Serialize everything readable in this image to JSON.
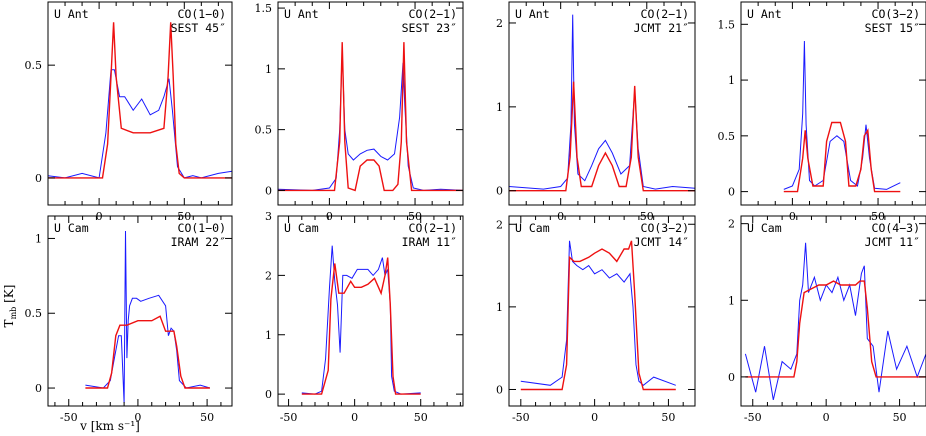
{
  "colors": {
    "observed": "#1a1aff",
    "model": "#ee1111"
  },
  "axis_labels": {
    "xlabel": "v [km s⁻¹]",
    "ylabel": "T",
    "ylabel_sub": "mb",
    "ylabel_unit": "[K]"
  },
  "chart_data": [
    {
      "type": "line",
      "star": "U Ant",
      "line": "CO(1−0)",
      "beam": "SEST 45″",
      "xlim": [
        -30,
        78
      ],
      "ylim": [
        -0.12,
        0.78
      ],
      "xticks": [
        0,
        50
      ],
      "yticks": [
        0,
        0.5
      ],
      "ytick_labels": [
        "0",
        "0.5"
      ],
      "series": [
        {
          "role": "observed",
          "x": [
            -30,
            -20,
            -10,
            0,
            4,
            7,
            9,
            12,
            15,
            20,
            25,
            30,
            35,
            38,
            41,
            43,
            46,
            50,
            55,
            60,
            70,
            78
          ],
          "y": [
            0.01,
            0.0,
            0.02,
            0.0,
            0.2,
            0.48,
            0.48,
            0.36,
            0.36,
            0.3,
            0.35,
            0.28,
            0.3,
            0.36,
            0.44,
            0.3,
            0.05,
            0.0,
            0.01,
            0.0,
            0.02,
            0.03
          ]
        },
        {
          "role": "model",
          "x": [
            -30,
            2,
            5,
            7,
            8.5,
            10,
            13,
            20,
            30,
            38,
            40.5,
            42,
            43.5,
            45,
            47,
            50,
            78
          ],
          "y": [
            0,
            0,
            0.15,
            0.45,
            0.69,
            0.45,
            0.22,
            0.2,
            0.2,
            0.22,
            0.45,
            0.69,
            0.45,
            0.15,
            0.02,
            0,
            0
          ]
        }
      ]
    },
    {
      "type": "line",
      "star": "U Ant",
      "line": "CO(2−1)",
      "beam": "SEST 23″",
      "xlim": [
        -30,
        78
      ],
      "ylim": [
        -0.12,
        1.55
      ],
      "xticks": [
        0,
        50
      ],
      "yticks": [
        0,
        0.5,
        1,
        1.5
      ],
      "ytick_labels": [
        "0",
        "0.5",
        "1",
        "1.5"
      ],
      "series": [
        {
          "role": "observed",
          "x": [
            -30,
            -10,
            0,
            4,
            6,
            7.5,
            9,
            11,
            14,
            18,
            22,
            26,
            30,
            34,
            38,
            41,
            43,
            44,
            46,
            49,
            55,
            65,
            78
          ],
          "y": [
            0.01,
            0.0,
            0.02,
            0.1,
            0.5,
            1.15,
            0.5,
            0.3,
            0.25,
            0.3,
            0.33,
            0.34,
            0.28,
            0.25,
            0.3,
            0.6,
            1.05,
            0.7,
            0.2,
            0.02,
            0.0,
            0.01,
            0.0
          ]
        },
        {
          "role": "model",
          "x": [
            -30,
            3,
            6,
            7.5,
            9,
            11,
            15,
            18,
            22,
            26,
            29,
            32,
            37,
            40,
            42,
            43.5,
            45,
            48,
            78
          ],
          "y": [
            0,
            0,
            0.4,
            1.22,
            0.4,
            0.02,
            0.0,
            0.2,
            0.25,
            0.25,
            0.2,
            0.0,
            0.0,
            0.05,
            0.4,
            1.22,
            0.4,
            0,
            0
          ]
        }
      ]
    },
    {
      "type": "line",
      "star": "U Ant",
      "line": "CO(2−1)",
      "beam": "JCMT 21″",
      "xlim": [
        -30,
        78
      ],
      "ylim": [
        -0.17,
        2.25
      ],
      "xticks": [
        0,
        50
      ],
      "yticks": [
        0,
        1,
        2
      ],
      "ytick_labels": [
        "0",
        "1",
        "2"
      ],
      "series": [
        {
          "role": "observed",
          "x": [
            -30,
            -10,
            0,
            4,
            6,
            7,
            8,
            10,
            14,
            18,
            22,
            26,
            30,
            35,
            40,
            42,
            43,
            45,
            48,
            55,
            65,
            78
          ],
          "y": [
            0.05,
            0.02,
            0.05,
            0.15,
            0.8,
            2.1,
            0.8,
            0.2,
            0.12,
            0.3,
            0.5,
            0.6,
            0.45,
            0.2,
            0.3,
            0.9,
            1.2,
            0.5,
            0.05,
            0.02,
            0.05,
            0.03
          ]
        },
        {
          "role": "model",
          "x": [
            -30,
            3,
            5.5,
            7.5,
            9.5,
            12,
            18,
            22,
            26,
            30,
            34,
            38,
            41,
            43,
            45,
            48,
            78
          ],
          "y": [
            0,
            0,
            0.4,
            1.3,
            0.4,
            0.05,
            0.05,
            0.3,
            0.45,
            0.3,
            0.05,
            0.05,
            0.4,
            1.25,
            0.4,
            0,
            0
          ]
        }
      ]
    },
    {
      "type": "line",
      "star": "U Ant",
      "line": "CO(3−2)",
      "beam": "SEST 15″",
      "xlim": [
        -30,
        78
      ],
      "ylim": [
        -0.12,
        1.7
      ],
      "xticks": [
        0,
        50
      ],
      "yticks": [
        0,
        0.5,
        1,
        1.5
      ],
      "ytick_labels": [
        "0",
        "0.5",
        "1",
        "1.5"
      ],
      "series": [
        {
          "role": "observed",
          "x": [
            -5,
            0,
            4,
            6,
            7,
            8,
            10,
            13,
            18,
            22,
            26,
            30,
            34,
            38,
            41,
            43,
            45,
            48,
            55,
            63
          ],
          "y": [
            0.02,
            0.05,
            0.2,
            0.7,
            1.35,
            0.6,
            0.1,
            0.05,
            0.1,
            0.45,
            0.5,
            0.45,
            0.1,
            0.05,
            0.3,
            0.6,
            0.3,
            0.03,
            0.02,
            0.08
          ]
        },
        {
          "role": "model",
          "x": [
            -5,
            3,
            6,
            7.5,
            9,
            12,
            18,
            20,
            23,
            28,
            31,
            33,
            37,
            40,
            42,
            44,
            46,
            48,
            63
          ],
          "y": [
            0,
            0,
            0.3,
            0.55,
            0.3,
            0.05,
            0.05,
            0.45,
            0.62,
            0.62,
            0.45,
            0.05,
            0.05,
            0.2,
            0.5,
            0.55,
            0.2,
            0,
            0
          ]
        }
      ]
    },
    {
      "type": "line",
      "star": "U Cam",
      "line": "CO(1−0)",
      "beam": "IRAM 22″",
      "xlim": [
        -65,
        68
      ],
      "ylim": [
        -0.12,
        1.15
      ],
      "xticks": [
        -50,
        0,
        50
      ],
      "yticks": [
        0,
        0.5,
        1
      ],
      "ytick_labels": [
        "0",
        "0.5",
        "1"
      ],
      "series": [
        {
          "role": "observed",
          "x": [
            -38,
            -25,
            -20,
            -17,
            -14,
            -12,
            -10,
            -9,
            -8,
            -7,
            -6,
            -4,
            -1,
            2,
            8,
            15,
            20,
            22,
            24,
            26,
            28,
            30,
            35,
            45,
            52
          ],
          "y": [
            0.02,
            0.0,
            0.05,
            0.2,
            0.35,
            0.35,
            -0.1,
            1.05,
            0.2,
            0.45,
            0.55,
            0.6,
            0.6,
            0.58,
            0.6,
            0.62,
            0.55,
            0.35,
            0.4,
            0.38,
            0.25,
            0.05,
            0.0,
            0.02,
            0.0
          ]
        },
        {
          "role": "model",
          "x": [
            -38,
            -22,
            -19,
            -16,
            -13,
            -8,
            0,
            10,
            16,
            20,
            23,
            26,
            28,
            31,
            34,
            52
          ],
          "y": [
            0,
            0,
            0.1,
            0.35,
            0.42,
            0.42,
            0.45,
            0.45,
            0.48,
            0.38,
            0.38,
            0.38,
            0.28,
            0.08,
            0,
            0
          ]
        }
      ]
    },
    {
      "type": "line",
      "star": "U Cam",
      "line": "CO(2−1)",
      "beam": "IRAM 11″",
      "xlim": [
        -58,
        82
      ],
      "ylim": [
        -0.2,
        3.0
      ],
      "xticks": [
        -50,
        0,
        50
      ],
      "yticks": [
        0,
        1,
        2,
        3
      ],
      "ytick_labels": [
        "0",
        "1",
        "2",
        "3"
      ],
      "series": [
        {
          "role": "observed",
          "x": [
            -40,
            -30,
            -25,
            -22,
            -19,
            -17,
            -15,
            -13,
            -11,
            -9,
            -6,
            -2,
            2,
            6,
            10,
            14,
            18,
            21,
            23,
            25,
            27,
            28,
            30,
            35,
            50
          ],
          "y": [
            0.02,
            0.0,
            0.05,
            0.6,
            1.8,
            2.5,
            1.9,
            1.5,
            0.7,
            2.0,
            2.0,
            1.95,
            2.1,
            2.1,
            2.1,
            2.0,
            2.1,
            2.3,
            2.0,
            2.1,
            1.5,
            0.3,
            0.05,
            0.0,
            0.02
          ]
        },
        {
          "role": "model",
          "x": [
            -40,
            -25,
            -20,
            -18,
            -15,
            -12,
            -8,
            -3,
            0,
            5,
            10,
            15,
            20,
            23,
            25,
            27,
            29,
            31,
            50
          ],
          "y": [
            0,
            0,
            0.4,
            1.6,
            2.2,
            1.7,
            1.7,
            1.9,
            1.8,
            1.8,
            1.85,
            1.95,
            1.7,
            2.0,
            2.3,
            1.5,
            0.3,
            0,
            0
          ]
        }
      ]
    },
    {
      "type": "line",
      "star": "U Cam",
      "line": "CO(3−2)",
      "beam": "JCMT 14″",
      "xlim": [
        -58,
        68
      ],
      "ylim": [
        -0.2,
        2.1
      ],
      "xticks": [
        -50,
        0,
        50
      ],
      "yticks": [
        0,
        1,
        2
      ],
      "ytick_labels": [
        "0",
        "1",
        "2"
      ],
      "series": [
        {
          "role": "observed",
          "x": [
            -50,
            -30,
            -22,
            -19,
            -17,
            -15,
            -12,
            -8,
            -4,
            0,
            5,
            10,
            15,
            20,
            24,
            26,
            28,
            30,
            33,
            40,
            55
          ],
          "y": [
            0.1,
            0.05,
            0.15,
            0.6,
            1.8,
            1.55,
            1.5,
            1.45,
            1.5,
            1.4,
            1.45,
            1.35,
            1.4,
            1.3,
            1.4,
            1.0,
            0.3,
            0.1,
            0.05,
            0.15,
            0.05
          ]
        },
        {
          "role": "model",
          "x": [
            -50,
            -22,
            -19,
            -17,
            -14,
            -10,
            -4,
            0,
            5,
            10,
            15,
            20,
            23,
            25,
            27,
            30,
            33,
            55
          ],
          "y": [
            0,
            0,
            0.3,
            1.6,
            1.55,
            1.55,
            1.6,
            1.65,
            1.7,
            1.65,
            1.55,
            1.7,
            1.7,
            1.8,
            1.2,
            0.2,
            0,
            0
          ]
        }
      ]
    },
    {
      "type": "line",
      "star": "U Cam",
      "line": "CO(4−3)",
      "beam": "JCMT 11″",
      "xlim": [
        -58,
        68
      ],
      "ylim": [
        -0.38,
        2.1
      ],
      "xticks": [
        -50,
        0,
        50
      ],
      "yticks": [
        0,
        1,
        2
      ],
      "ytick_labels": [
        "0",
        "1",
        "2"
      ],
      "series": [
        {
          "role": "observed",
          "x": [
            -55,
            -48,
            -42,
            -36,
            -30,
            -24,
            -20,
            -18,
            -16,
            -14,
            -12,
            -8,
            -4,
            0,
            4,
            8,
            12,
            16,
            20,
            24,
            26,
            28,
            32,
            36,
            42,
            48,
            55,
            62,
            68
          ],
          "y": [
            0.3,
            -0.2,
            0.4,
            -0.3,
            0.2,
            0.1,
            0.3,
            1.0,
            1.2,
            1.75,
            1.1,
            1.3,
            1.0,
            1.2,
            1.1,
            1.3,
            1.0,
            1.2,
            0.8,
            1.35,
            1.45,
            0.5,
            0.4,
            -0.2,
            0.6,
            0.1,
            0.4,
            0.0,
            0.3
          ]
        },
        {
          "role": "model",
          "x": [
            -55,
            -22,
            -20,
            -18,
            -15,
            -10,
            -5,
            0,
            5,
            10,
            15,
            20,
            23,
            26,
            28,
            31,
            34,
            68
          ],
          "y": [
            0,
            0,
            0.2,
            0.7,
            1.1,
            1.15,
            1.2,
            1.2,
            1.25,
            1.2,
            1.2,
            1.2,
            1.25,
            1.25,
            0.9,
            0.2,
            0,
            0
          ]
        }
      ]
    }
  ]
}
